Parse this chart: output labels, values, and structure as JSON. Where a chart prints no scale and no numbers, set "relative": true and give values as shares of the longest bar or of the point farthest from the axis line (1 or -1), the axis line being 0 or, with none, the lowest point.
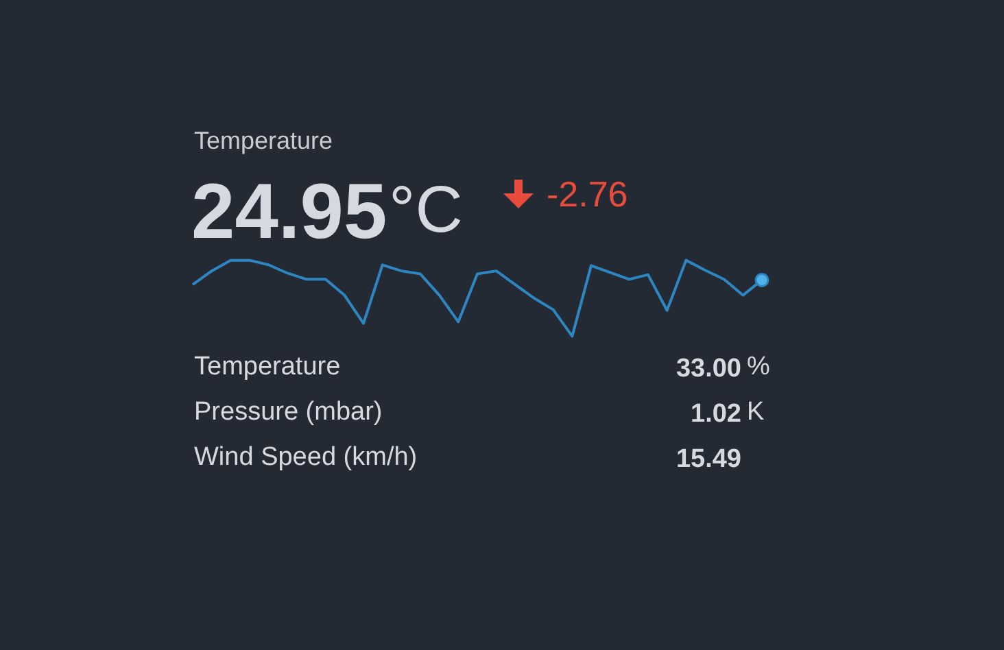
{
  "chart_data": {
    "type": "line",
    "title": "Temperature",
    "relative": true,
    "categories": [
      null,
      null,
      null,
      null,
      null,
      null,
      null,
      null,
      null,
      null,
      null,
      null,
      null,
      null,
      null,
      null,
      null,
      null,
      null,
      null,
      null,
      null,
      null,
      null,
      null,
      null,
      null,
      null,
      null,
      null,
      null
    ],
    "series": [
      {
        "color": "#2e86c1",
        "values": [
          0.68,
          0.86,
          1.0,
          1.0,
          0.94,
          0.83,
          0.75,
          0.75,
          0.54,
          0.17,
          0.94,
          0.86,
          0.82,
          0.54,
          0.19,
          0.82,
          0.86,
          0.68,
          0.5,
          0.35,
          0.0,
          0.93,
          0.84,
          0.75,
          0.81,
          0.34,
          1.0,
          0.87,
          0.75,
          0.54,
          0.74
        ]
      }
    ],
    "annotations": [
      "24.95",
      "°C",
      "-2.76",
      "Temperature",
      "33.00",
      "%",
      "Pressure (mbar)",
      "1.02",
      "K",
      "Wind Speed (km/h)",
      "15.49"
    ]
  }
}
